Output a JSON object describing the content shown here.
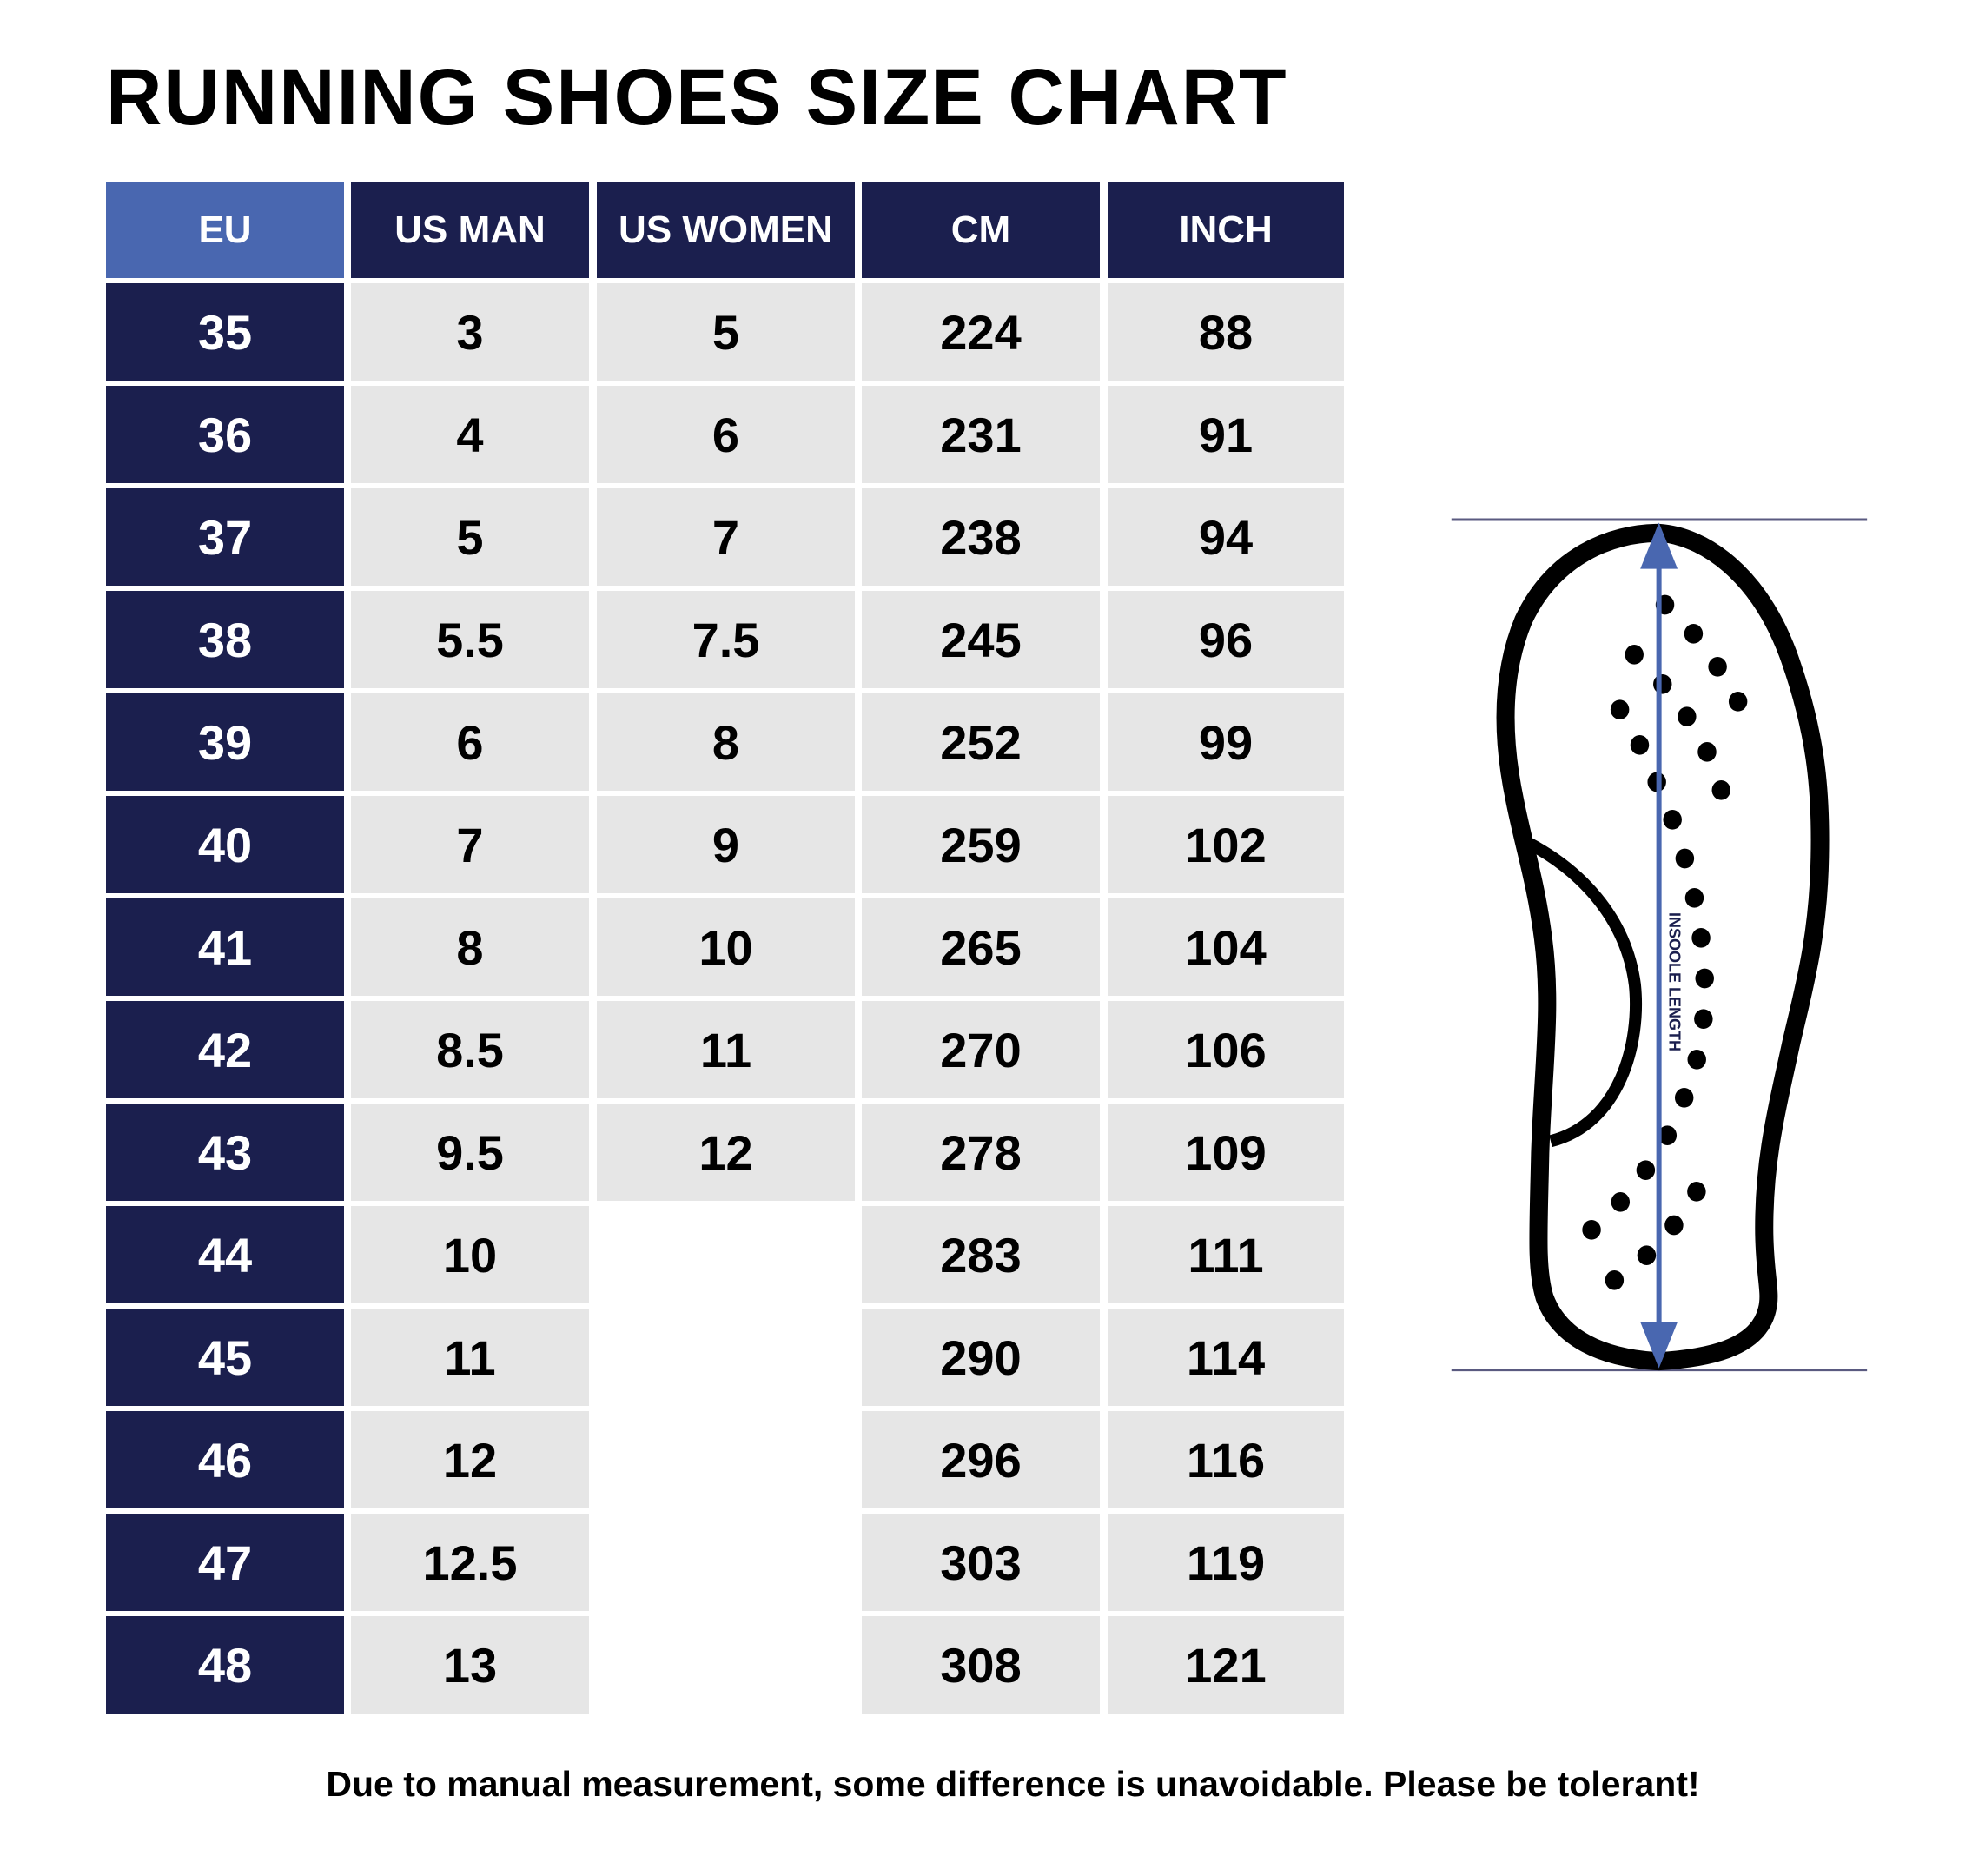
{
  "title": "RUNNING SHOES SIZE CHART",
  "table": {
    "headers": [
      "EU",
      "US MAN",
      "US WOMEN",
      "CM",
      "INCH"
    ],
    "rows": [
      [
        "35",
        "3",
        "5",
        "224",
        "88"
      ],
      [
        "36",
        "4",
        "6",
        "231",
        "91"
      ],
      [
        "37",
        "5",
        "7",
        "238",
        "94"
      ],
      [
        "38",
        "5.5",
        "7.5",
        "245",
        "96"
      ],
      [
        "39",
        "6",
        "8",
        "252",
        "99"
      ],
      [
        "40",
        "7",
        "9",
        "259",
        "102"
      ],
      [
        "41",
        "8",
        "10",
        "265",
        "104"
      ],
      [
        "42",
        "8.5",
        "11",
        "270",
        "106"
      ],
      [
        "43",
        "9.5",
        "12",
        "278",
        "109"
      ],
      [
        "44",
        "10",
        "",
        "283",
        "111"
      ],
      [
        "45",
        "11",
        "",
        "290",
        "114"
      ],
      [
        "46",
        "12",
        "",
        "296",
        "116"
      ],
      [
        "47",
        "12.5",
        "",
        "303",
        "119"
      ],
      [
        "48",
        "13",
        "",
        "308",
        "121"
      ]
    ]
  },
  "diagram": {
    "label": "INSOOLE LENGTH",
    "arrow_color": "#4967b0",
    "line_color": "#5a5a80"
  },
  "colors": {
    "navy": "#1b1f4e",
    "eu_header": "#4967b0",
    "cell_gray": "#e6e6e6"
  },
  "footer": "Due to manual measurement, some difference is unavoidable. Please be tolerant!"
}
